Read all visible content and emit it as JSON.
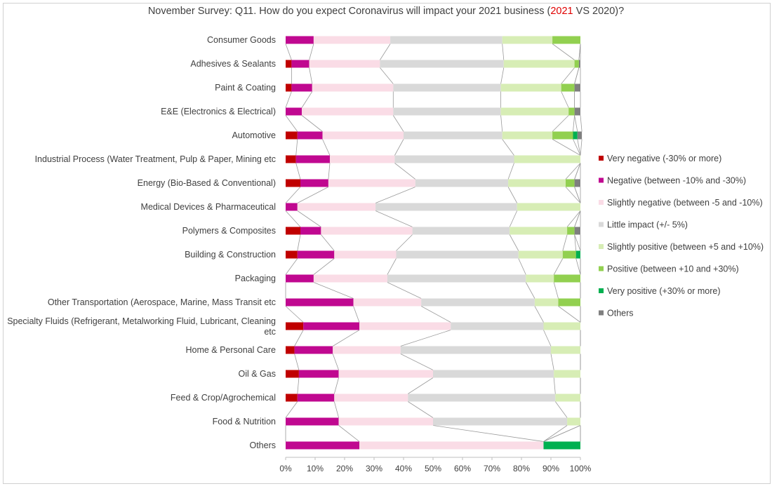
{
  "chart_data": {
    "type": "bar",
    "orientation": "horizontal",
    "stacked": "100%",
    "title_parts": [
      "November Survey: Q11. How do you expect Coronavirus will impact your 2021 business (",
      "2021",
      " VS 2020)?"
    ],
    "highlight_color": "#e00000",
    "categories": [
      "Consumer Goods",
      "Adhesives & Sealants",
      "Paint & Coating",
      "E&E (Electronics & Electrical)",
      "Automotive",
      "Industrial Process (Water Treatment, Pulp & Paper, Mining etc",
      "Energy (Bio-Based & Conventional)",
      "Medical Devices & Pharmaceutical",
      "Polymers & Composites",
      "Building & Construction",
      "Packaging",
      "Other Transportation (Aerospace, Marine, Mass Transit etc",
      [
        "Specialty Fluids (Refrigerant, Metalworking Fluid, Lubricant, Cleaning",
        "etc"
      ],
      "Home & Personal Care",
      "Oil & Gas",
      "Feed & Crop/Agrochemical",
      "Food & Nutrition",
      "Others"
    ],
    "series": [
      {
        "name": "Very negative (-30% or more)",
        "color": "#c00000",
        "values": [
          0,
          2,
          2,
          0,
          4,
          3.5,
          5,
          0,
          5,
          4,
          0,
          0,
          6,
          3,
          4.5,
          4,
          0,
          0
        ]
      },
      {
        "name": "Negative (between -10% and -30%)",
        "color": "#c00890",
        "values": [
          9.5,
          6,
          7,
          5.5,
          8.5,
          11.5,
          9.5,
          4,
          7,
          12.5,
          9.5,
          23,
          19,
          13,
          13.5,
          12.5,
          18,
          25
        ]
      },
      {
        "name": "Slightly negative (between -5 and -10%)",
        "color": "#fadce6",
        "values": [
          26,
          24,
          27.5,
          31,
          27.5,
          22,
          29.5,
          26.5,
          31,
          21,
          25,
          23,
          31,
          23,
          32,
          25,
          32,
          62.5
        ]
      },
      {
        "name": "Little impact (+/- 5%)",
        "color": "#d9d9d9",
        "values": [
          38,
          42,
          36.5,
          36.5,
          33.5,
          40.5,
          31.5,
          48,
          33,
          41.5,
          47,
          38.5,
          31.5,
          51,
          41,
          50,
          45.5,
          0
        ]
      },
      {
        "name": "Slightly positive (between +5 and +10%)",
        "color": "#d7edb5",
        "values": [
          17,
          24,
          20.5,
          23,
          17,
          22.5,
          19.5,
          21.5,
          19.5,
          15,
          9.5,
          8,
          12.5,
          10,
          9,
          8.5,
          4.5,
          0
        ]
      },
      {
        "name": "Positive (between +10 and +30%)",
        "color": "#92d050",
        "values": [
          9.5,
          1.5,
          4.5,
          2,
          7,
          0,
          3,
          0,
          2.5,
          4.5,
          9,
          7.5,
          0,
          0,
          0,
          0,
          0,
          0
        ]
      },
      {
        "name": "Very positive (+30% or more)",
        "color": "#00b050",
        "values": [
          0,
          0,
          0,
          0,
          1.5,
          0,
          0,
          0,
          0,
          1.5,
          0,
          0,
          0,
          0,
          0,
          0,
          0,
          12.5
        ]
      },
      {
        "name": "Others",
        "color": "#7f7f7f",
        "values": [
          0,
          0.5,
          2,
          2,
          1.5,
          0,
          2,
          0,
          2,
          0,
          0,
          0,
          0,
          0,
          0,
          0,
          0,
          0
        ]
      }
    ],
    "xlim": [
      0,
      100
    ],
    "xticks": [
      "0%",
      "10%",
      "20%",
      "30%",
      "40%",
      "50%",
      "60%",
      "70%",
      "80%",
      "90%",
      "100%"
    ],
    "series_lines": true,
    "grid": false,
    "legend_position": "right"
  }
}
